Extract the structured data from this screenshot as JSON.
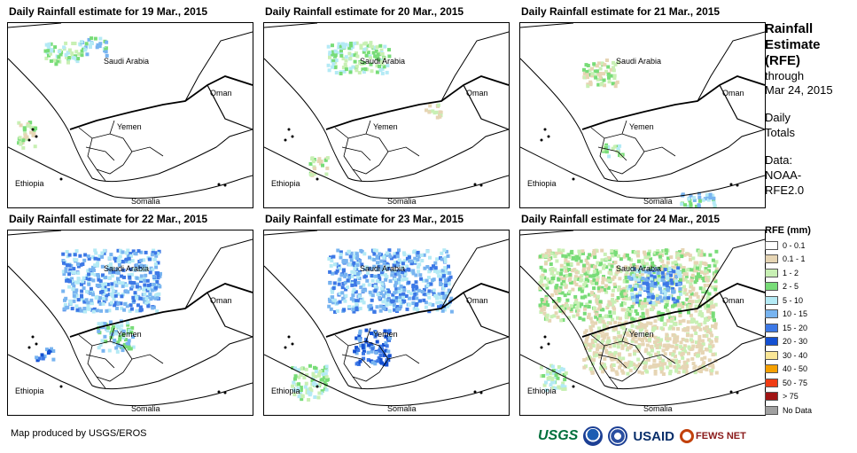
{
  "panels": [
    {
      "title": "Daily Rainfall estimate for 19 Mar., 2015",
      "labels": {
        "saudi": "Saudi Arabia",
        "oman": "Oman",
        "yemen": "Yemen",
        "ethiopia": "Ethiopia",
        "somalia": "Somalia"
      }
    },
    {
      "title": "Daily Rainfall estimate for 20 Mar., 2015",
      "labels": {
        "saudi": "Saudi Arabia",
        "oman": "Oman",
        "yemen": "Yemen",
        "ethiopia": "Ethiopia",
        "somalia": "Somalia"
      }
    },
    {
      "title": "Daily Rainfall estimate for 21 Mar., 2015",
      "labels": {
        "saudi": "Saudi Arabia",
        "oman": "Oman",
        "yemen": "Yemen",
        "ethiopia": "Ethiopia",
        "somalia": "Somalia"
      }
    },
    {
      "title": "Daily Rainfall estimate for 22 Mar., 2015",
      "labels": {
        "saudi": "Saudi Arabia",
        "oman": "Oman",
        "yemen": "Yemen",
        "ethiopia": "Ethiopia",
        "somalia": "Somalia"
      }
    },
    {
      "title": "Daily Rainfall estimate for 23 Mar., 2015",
      "labels": {
        "saudi": "Saudi Arabia",
        "oman": "Oman",
        "yemen": "Yemen",
        "ethiopia": "Ethiopia",
        "somalia": "Somalia"
      }
    },
    {
      "title": "Daily Rainfall estimate for 24 Mar., 2015",
      "labels": {
        "saudi": "Saudi Arabia",
        "oman": "Oman",
        "yemen": "Yemen",
        "ethiopia": "Ethiopia",
        "somalia": "Somalia"
      }
    }
  ],
  "sidebar": {
    "title_line1": "Rainfall",
    "title_line2": "Estimate",
    "title_line3": "(RFE)",
    "sub_line1": "through",
    "sub_line2": "Mar 24, 2015",
    "daily_line1": "Daily",
    "daily_line2": "Totals",
    "data_line1": "Data:",
    "data_line2": "NOAA-",
    "data_line3": "RFE2.0"
  },
  "legend": {
    "title": "RFE (mm)",
    "items": [
      {
        "label": "0 - 0.1",
        "color": "#ffffff"
      },
      {
        "label": "0.1 - 1",
        "color": "#e6d5b4"
      },
      {
        "label": "1 - 2",
        "color": "#c8f0b4"
      },
      {
        "label": "2 - 5",
        "color": "#78dc78"
      },
      {
        "label": "5 - 10",
        "color": "#b4eaf5"
      },
      {
        "label": "10 - 15",
        "color": "#78b4f0"
      },
      {
        "label": "15 - 20",
        "color": "#3c78e6"
      },
      {
        "label": "20 - 30",
        "color": "#1450d2"
      },
      {
        "label": "30 - 40",
        "color": "#fae696"
      },
      {
        "label": "40 - 50",
        "color": "#f5a000"
      },
      {
        "label": "50 - 75",
        "color": "#f03c14"
      },
      {
        "label": "> 75",
        "color": "#a01414"
      },
      {
        "label": "No Data",
        "color": "#a0a0a0"
      }
    ]
  },
  "footer": {
    "credit": "Map produced by USGS/EROS",
    "logos": {
      "usgs": "USGS",
      "usaid": "USAID",
      "fews": "FEWS NET"
    }
  }
}
